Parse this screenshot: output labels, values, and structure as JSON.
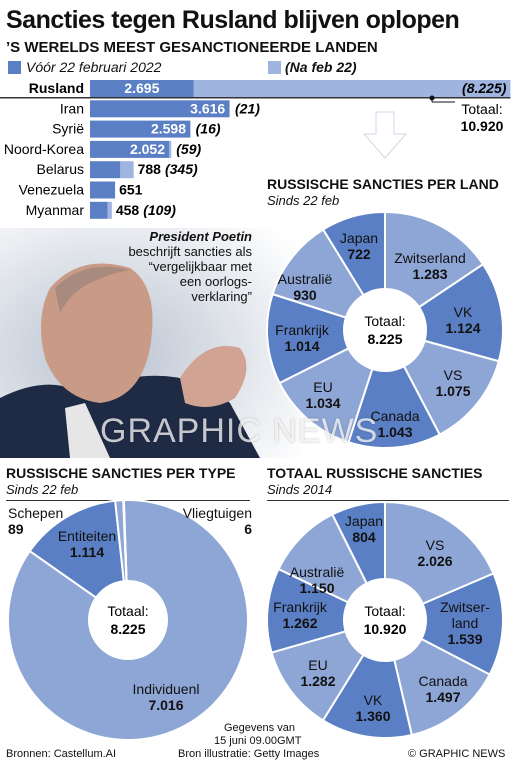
{
  "title": "Sancties tegen Rusland blijven oplopen",
  "subtitle": "’S WERELDS MEEST GESANCTIONEERDE LANDEN",
  "legend": {
    "before_label": "Vóór 22 februari 2022",
    "after_label": "(Na feb 22)",
    "before_color": "#5b7fc4",
    "after_color": "#9fb4de"
  },
  "quote": {
    "name": "President Poetin",
    "text": "beschrijft sancties als “vergelijkbaar met een oorlogs-verklaring”"
  },
  "total_russia": {
    "label": "Totaal:",
    "value": "10.920"
  },
  "sections": {
    "per_country_title": "RUSSISCHE SANCTIES PER LAND",
    "per_country_sub": "Sinds 22 feb",
    "per_type_title": "RUSSISCHE SANCTIES PER TYPE",
    "per_type_sub": "Sinds 22 feb",
    "total_title": "TOTAAL RUSSISCHE SANCTIES",
    "total_sub": "Sinds 2014"
  },
  "footer": {
    "sources": "Bronnen: Castellum.AI",
    "date_line1": "Gegevens van",
    "date_line2": "15 juni 09.00GMT",
    "photo_credit": "Bron illustratie: Getty Images",
    "copyright": "© GRAPHIC NEWS"
  },
  "watermark": "GRAPHIC NEWS",
  "chart_data": [
    {
      "type": "bar",
      "orientation": "horizontal",
      "stacked": true,
      "categories": [
        "Rusland",
        "Iran",
        "Syrië",
        "Noord-Korea",
        "Belarus",
        "Venezuela",
        "Myanmar"
      ],
      "series": [
        {
          "name": "Vóór 22 februari 2022",
          "values": [
            2695,
            3616,
            2598,
            2052,
            788,
            651,
            458
          ],
          "labels": [
            "2.695",
            "3.616",
            "2.598",
            "2.052",
            "788",
            "651",
            "458"
          ]
        },
        {
          "name": "(Na feb 22)",
          "values": [
            8225,
            21,
            16,
            59,
            345,
            0,
            109
          ],
          "labels": [
            "(8.225)",
            "(21)",
            "(16)",
            "(59)",
            "(345)",
            "",
            "(109)"
          ]
        }
      ]
    },
    {
      "type": "pie",
      "title": "RUSSISCHE SANCTIES PER LAND",
      "center_label": "Totaal:",
      "center_value": "8.225",
      "slices": [
        {
          "label": "Zwitserland",
          "value": 1283,
          "value_label": "1.283"
        },
        {
          "label": "VK",
          "value": 1124,
          "value_label": "1.124"
        },
        {
          "label": "VS",
          "value": 1075,
          "value_label": "1.075"
        },
        {
          "label": "Canada",
          "value": 1043,
          "value_label": "1.043"
        },
        {
          "label": "EU",
          "value": 1034,
          "value_label": "1.034"
        },
        {
          "label": "Frankrijk",
          "value": 1014,
          "value_label": "1.014"
        },
        {
          "label": "Australië",
          "value": 930,
          "value_label": "930"
        },
        {
          "label": "Japan",
          "value": 722,
          "value_label": "722"
        }
      ]
    },
    {
      "type": "pie",
      "title": "RUSSISCHE SANCTIES PER TYPE",
      "center_label": "Totaal:",
      "center_value": "8.225",
      "slices": [
        {
          "label": "Individuenl",
          "value": 7016,
          "value_label": "7.016"
        },
        {
          "label": "Entiteiten",
          "value": 1114,
          "value_label": "1.114"
        },
        {
          "label": "Schepen",
          "value": 89,
          "value_label": "89"
        },
        {
          "label": "Vliegtuigen",
          "value": 6,
          "value_label": "6"
        }
      ]
    },
    {
      "type": "pie",
      "title": "TOTAAL RUSSISCHE SANCTIES",
      "center_label": "Totaal:",
      "center_value": "10.920",
      "slices": [
        {
          "label": "VS",
          "value": 2026,
          "value_label": "2.026"
        },
        {
          "label": "Zwitser-land",
          "value": 1539,
          "value_label": "1.539"
        },
        {
          "label": "Canada",
          "value": 1497,
          "value_label": "1.497"
        },
        {
          "label": "VK",
          "value": 1360,
          "value_label": "1.360"
        },
        {
          "label": "EU",
          "value": 1282,
          "value_label": "1.282"
        },
        {
          "label": "Frankrijk",
          "value": 1262,
          "value_label": "1.262"
        },
        {
          "label": "Australië",
          "value": 1150,
          "value_label": "1.150"
        },
        {
          "label": "Japan",
          "value": 804,
          "value_label": "804"
        }
      ]
    }
  ]
}
